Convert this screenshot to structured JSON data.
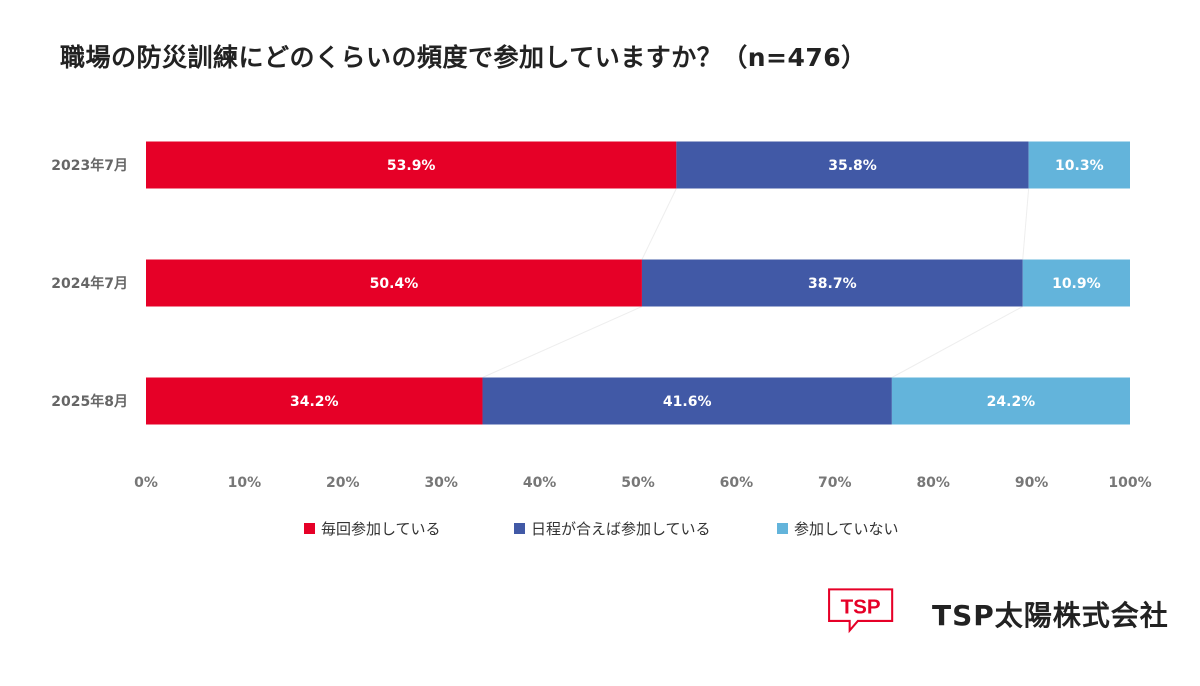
{
  "title": "職場の防災訓練にどのくらいの頻度で参加していますか？（n=476）",
  "chart_data": {
    "type": "bar",
    "orientation": "horizontal",
    "stacked": true,
    "percent_stacked": true,
    "categories": [
      "2023年7月",
      "2024年7月",
      "2025年8月"
    ],
    "series": [
      {
        "name": "毎回参加している",
        "color": "#e60027",
        "values": [
          53.9,
          50.4,
          34.2
        ]
      },
      {
        "name": "日程が合えば参加している",
        "color": "#4159a6",
        "values": [
          35.8,
          38.7,
          41.6
        ]
      },
      {
        "name": "参加していない",
        "color": "#63b4db",
        "values": [
          10.3,
          10.9,
          24.2
        ]
      }
    ],
    "x_ticks": [
      "0%",
      "10%",
      "20%",
      "30%",
      "40%",
      "50%",
      "60%",
      "70%",
      "80%",
      "90%",
      "100%"
    ],
    "xlim": [
      0,
      100
    ],
    "legend_position": "bottom",
    "grid": false
  },
  "logo": {
    "mark_text": "TSP",
    "company": "TSP太陽株式会社",
    "color": "#e60027"
  }
}
